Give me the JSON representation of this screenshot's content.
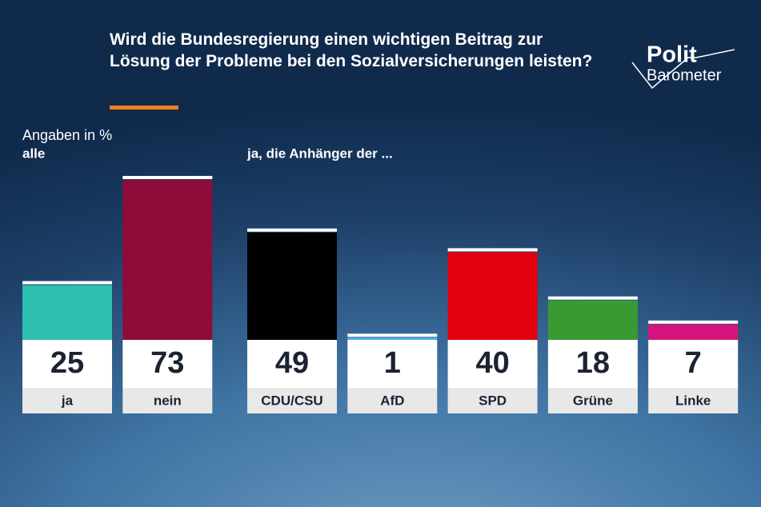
{
  "logo": {
    "line1": "Polit",
    "line2": "Barometer"
  },
  "chart_data": [
    {
      "type": "bar",
      "title": "Wird die Bundesregierung einen wichtigen Beitrag zur Lösung der Probleme bei den Sozialversicherungen leisten?",
      "subtitle": "Angaben in %",
      "group_label": "alle",
      "categories": [
        "ja",
        "nein"
      ],
      "values": [
        25,
        73
      ],
      "colors": [
        "#2ebfb1",
        "#8e0b3a"
      ]
    },
    {
      "type": "bar",
      "group_label": "ja, die Anhänger der ...",
      "categories": [
        "CDU/CSU",
        "AfD",
        "SPD",
        "Grüne",
        "Linke"
      ],
      "values": [
        49,
        1,
        40,
        18,
        7
      ],
      "colors": [
        "#000000",
        "#4fb3e6",
        "#e3000f",
        "#3a9a32",
        "#d6137a"
      ]
    }
  ]
}
